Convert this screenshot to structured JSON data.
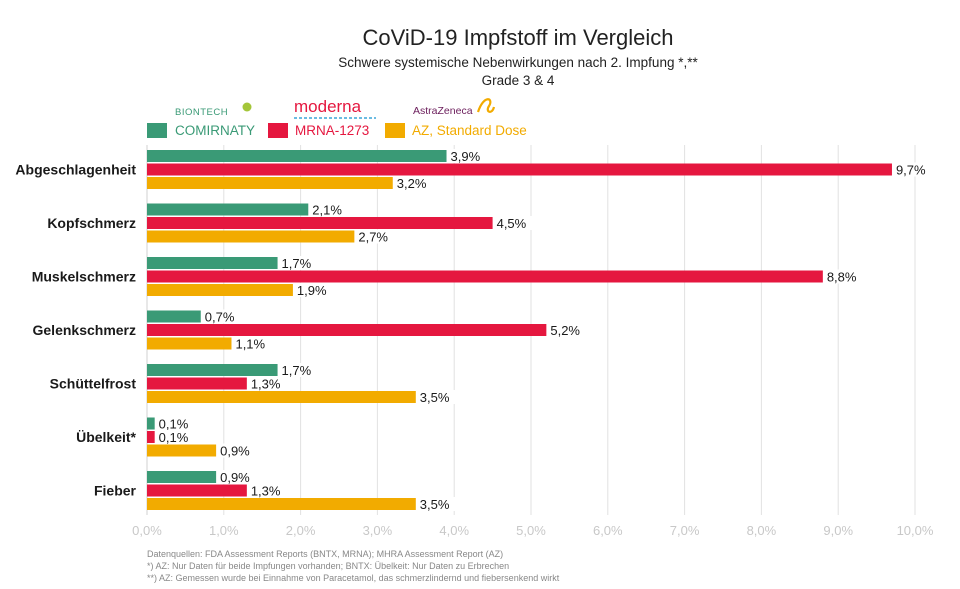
{
  "chart_data": {
    "type": "bar",
    "orientation": "horizontal",
    "title": "CoViD-19 Impfstoff im Vergleich",
    "subtitle": "Schwere systemische Nebenwirkungen nach 2. Impfung *,**",
    "subtitle2": "Grade 3 & 4",
    "categories": [
      "Abgeschlagenheit",
      "Kopfschmerz",
      "Muskelschmerz",
      "Gelenkschmerz",
      "Schüttelfrost",
      "Übelkeit*",
      "Fieber"
    ],
    "series": [
      {
        "name": "COMIRNATY",
        "color": "#3a9a76",
        "values": [
          3.9,
          2.1,
          1.7,
          0.7,
          1.7,
          0.1,
          0.9
        ],
        "labels": [
          "3,9%",
          "2,1%",
          "1,7%",
          "0,7%",
          "1,7%",
          "0,1%",
          "0,9%"
        ]
      },
      {
        "name": "MRNA-1273",
        "color": "#e5173f",
        "values": [
          9.7,
          4.5,
          8.8,
          5.2,
          1.3,
          0.1,
          1.3
        ],
        "labels": [
          "9,7%",
          "4,5%",
          "8,8%",
          "5,2%",
          "1,3%",
          "0,1%",
          "1,3%"
        ]
      },
      {
        "name": "AZ, Standard Dose",
        "color": "#f2ab00",
        "values": [
          3.2,
          2.7,
          1.9,
          1.1,
          3.5,
          0.9,
          3.5
        ],
        "labels": [
          "3,2%",
          "2,7%",
          "1,9%",
          "1,1%",
          "3,5%",
          "0,9%",
          "3,5%"
        ]
      }
    ],
    "xlim": [
      0,
      10
    ],
    "xticks": [
      0,
      1,
      2,
      3,
      4,
      5,
      6,
      7,
      8,
      9,
      10
    ],
    "xtick_labels": [
      "0,0%",
      "1,0%",
      "2,0%",
      "3,0%",
      "4,0%",
      "5,0%",
      "6,0%",
      "7,0%",
      "8,0%",
      "9,0%",
      "10,0%"
    ],
    "grid": true,
    "legend_position": "top-left",
    "logos": [
      "BIONTECH",
      "moderna",
      "AstraZeneca"
    ],
    "footnotes": [
      "Datenquellen: FDA Assessment Reports (BNTX, MRNA); MHRA Assessment Report (AZ)",
      "*) AZ: Nur Daten für beide Impfungen vorhanden; BNTX: Übelkeit: Nur Daten zu Erbrechen",
      "**) AZ: Gemessen wurde bei Einnahme von Paracetamol, das schmerzlindernd und fiebersenkend wirkt"
    ]
  }
}
